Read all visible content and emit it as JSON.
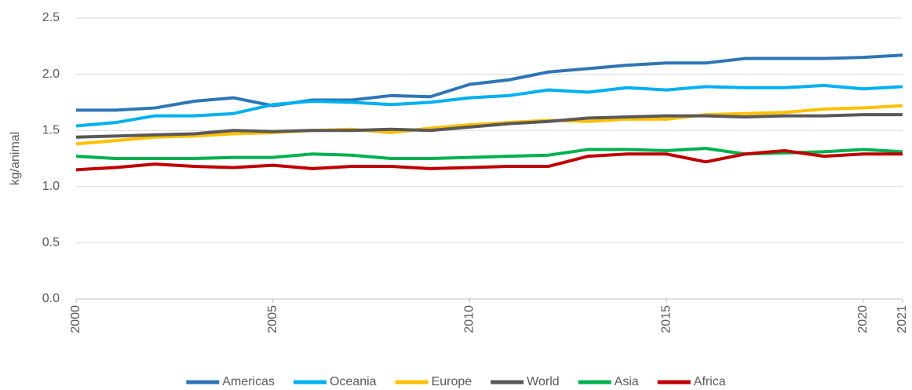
{
  "chart_data": {
    "type": "line",
    "y_label": "kg/animal",
    "x": [
      2000,
      2001,
      2002,
      2003,
      2004,
      2005,
      2006,
      2007,
      2008,
      2009,
      2010,
      2011,
      2012,
      2013,
      2014,
      2015,
      2016,
      2017,
      2018,
      2019,
      2020,
      2021
    ],
    "xlim": [
      2000,
      2021
    ],
    "xticks": [
      2000,
      2005,
      2010,
      2015,
      2020,
      2021
    ],
    "ylim": [
      0,
      2.5
    ],
    "yticks": [
      {
        "value": 0,
        "label": "0.0"
      },
      0.5,
      {
        "value": 1,
        "label": "1.0"
      },
      1.5,
      {
        "value": 2,
        "label": "2.0"
      },
      2.5
    ],
    "grid": true,
    "legend": "bottom",
    "series": [
      {
        "name": "Americas",
        "color": "#2e75b6",
        "values": [
          1.68,
          1.68,
          1.7,
          1.76,
          1.79,
          1.72,
          1.77,
          1.77,
          1.81,
          1.8,
          1.91,
          1.95,
          2.02,
          2.05,
          2.08,
          2.1,
          2.1,
          2.14,
          2.14,
          2.14,
          2.15,
          2.17
        ]
      },
      {
        "name": "Oceania",
        "color": "#00b0f0",
        "values": [
          1.54,
          1.57,
          1.63,
          1.63,
          1.65,
          1.73,
          1.76,
          1.75,
          1.73,
          1.75,
          1.79,
          1.81,
          1.86,
          1.84,
          1.88,
          1.86,
          1.89,
          1.88,
          1.88,
          1.9,
          1.87,
          1.89
        ]
      },
      {
        "name": "Europe",
        "color": "#ffc000",
        "values": [
          1.38,
          1.41,
          1.44,
          1.45,
          1.47,
          1.48,
          1.5,
          1.51,
          1.48,
          1.52,
          1.55,
          1.57,
          1.59,
          1.58,
          1.6,
          1.6,
          1.64,
          1.65,
          1.66,
          1.69,
          1.7,
          1.72
        ]
      },
      {
        "name": "World",
        "color": "#595959",
        "values": [
          1.44,
          1.45,
          1.46,
          1.47,
          1.5,
          1.49,
          1.5,
          1.5,
          1.51,
          1.5,
          1.53,
          1.56,
          1.58,
          1.61,
          1.62,
          1.63,
          1.63,
          1.62,
          1.63,
          1.63,
          1.64,
          1.64
        ]
      },
      {
        "name": "Asia",
        "color": "#00b050",
        "values": [
          1.27,
          1.25,
          1.25,
          1.25,
          1.26,
          1.26,
          1.29,
          1.28,
          1.25,
          1.25,
          1.26,
          1.27,
          1.28,
          1.33,
          1.33,
          1.32,
          1.34,
          1.29,
          1.3,
          1.31,
          1.33,
          1.31
        ]
      },
      {
        "name": "Africa",
        "color": "#c00000",
        "values": [
          1.15,
          1.17,
          1.2,
          1.18,
          1.17,
          1.19,
          1.16,
          1.18,
          1.18,
          1.16,
          1.17,
          1.18,
          1.18,
          1.27,
          1.29,
          1.29,
          1.22,
          1.29,
          1.32,
          1.27,
          1.29,
          1.29
        ]
      }
    ]
  }
}
